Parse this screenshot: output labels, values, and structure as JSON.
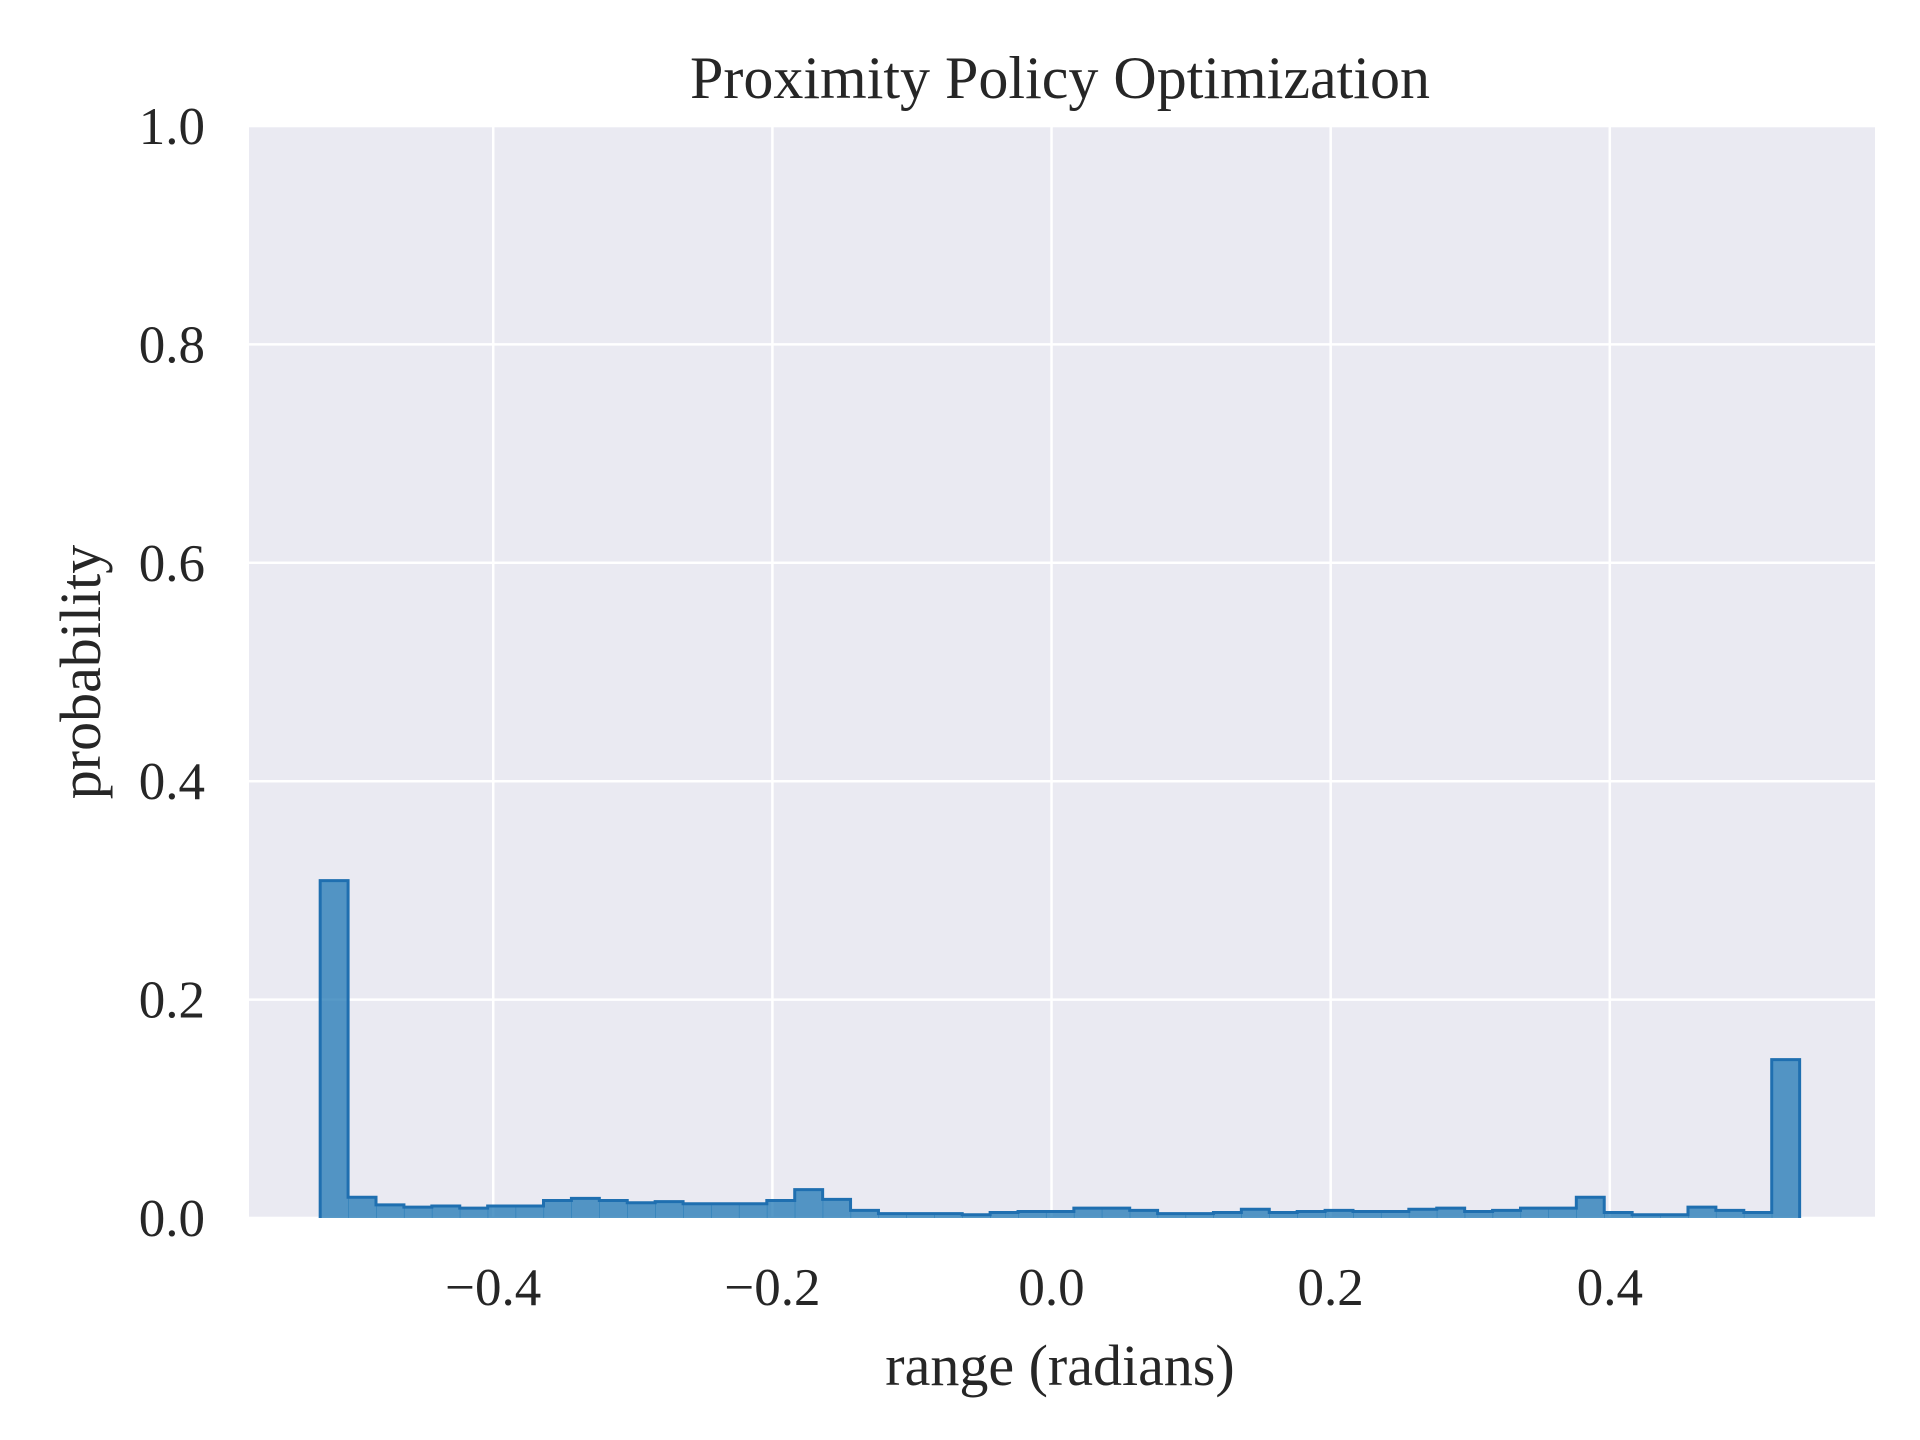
{
  "chart_data": {
    "type": "bar",
    "title": "Proximity Policy Optimization",
    "xlabel": "range (radians)",
    "ylabel": "probability",
    "xlim": [
      -0.575,
      0.59
    ],
    "ylim": [
      0.0,
      1.0
    ],
    "x_ticks": [
      -0.4,
      -0.2,
      0.0,
      0.2,
      0.4
    ],
    "x_tick_labels": [
      "−0.4",
      "−0.2",
      "0.0",
      "0.2",
      "0.4"
    ],
    "y_ticks": [
      0.0,
      0.2,
      0.4,
      0.6,
      0.8,
      1.0
    ],
    "y_tick_labels": [
      "0.0",
      "0.2",
      "0.4",
      "0.6",
      "0.8",
      "1.0"
    ],
    "grid": true,
    "legend": "none",
    "histtype": "stepfilled",
    "bin_start": -0.524,
    "bin_width": 0.02,
    "values": [
      0.309,
      0.019,
      0.012,
      0.01,
      0.011,
      0.009,
      0.011,
      0.011,
      0.016,
      0.018,
      0.016,
      0.014,
      0.015,
      0.013,
      0.013,
      0.013,
      0.016,
      0.026,
      0.017,
      0.007,
      0.004,
      0.004,
      0.004,
      0.003,
      0.005,
      0.006,
      0.006,
      0.009,
      0.009,
      0.007,
      0.004,
      0.004,
      0.005,
      0.008,
      0.005,
      0.006,
      0.007,
      0.006,
      0.006,
      0.008,
      0.009,
      0.006,
      0.007,
      0.009,
      0.009,
      0.019,
      0.005,
      0.003,
      0.003,
      0.01,
      0.007,
      0.005,
      0.145
    ],
    "colors": {
      "figure_bg": "#ffffff",
      "axes_bg": "#eaeaf2",
      "grid": "#ffffff",
      "bar_fill": "#1f77b4",
      "bar_edge": "#1f6fb0",
      "text": "#262626"
    }
  }
}
